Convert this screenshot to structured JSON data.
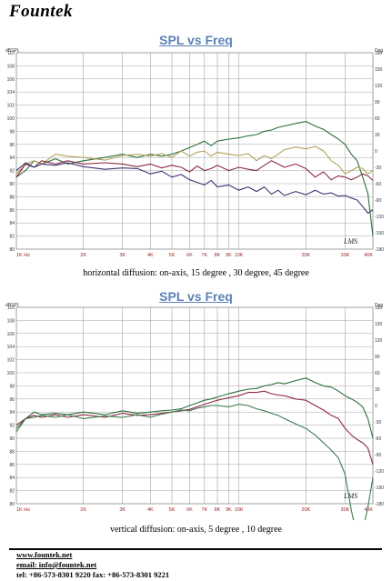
{
  "brand": "Fountek",
  "colors": {
    "grid_major": "#a3a3a3",
    "grid_minor": "#cfcfcf",
    "tick_label_red": "#9c1f1f",
    "series_on_axis": "#2f6e3b",
    "series_15": "#b0a35a",
    "series_30": "#8a2b45",
    "series_45": "#3b3472",
    "title_blue": "#5d82b5"
  },
  "chart_data": [
    {
      "type": "line",
      "title": "SPL vs Freq",
      "caption": "horizontal diffusion: on-axis, 15 degree , 30 degree, 45 degree",
      "ylabel": "dBSPL",
      "y2label": "Deg",
      "watermark": "LMS",
      "x_scale": "log",
      "xlim": [
        1000,
        40000
      ],
      "ylim": [
        80,
        110
      ],
      "y2lim": [
        -180,
        180
      ],
      "x_ticks": [
        1000,
        2000,
        3000,
        4000,
        5000,
        6000,
        7000,
        8000,
        9000,
        10000,
        20000,
        30000,
        40000
      ],
      "x_tick_labels": [
        "1K Hz",
        "2K",
        "3K",
        "4K",
        "5K",
        "6K",
        "7K",
        "8K",
        "9K",
        "10K",
        "20K",
        "30K",
        "40K"
      ],
      "y_ticks": [
        110,
        108,
        106,
        104,
        102,
        100,
        98,
        96,
        94,
        92,
        90,
        88,
        86,
        84,
        82,
        80
      ],
      "y2_ticks": [
        180,
        150,
        120,
        90,
        60,
        30,
        0,
        -30,
        -60,
        -90,
        -120,
        -150,
        -180
      ],
      "grid": true,
      "series": [
        {
          "color": "#2f6e3b",
          "x": [
            1000,
            1100,
            1200,
            1300,
            1500,
            1700,
            2000,
            2500,
            3000,
            3500,
            4000,
            4500,
            5000,
            5500,
            6000,
            6500,
            7000,
            7500,
            8000,
            9000,
            10000,
            11000,
            12000,
            13000,
            14000,
            15000,
            16000,
            18000,
            20000,
            22000,
            24000,
            26000,
            28000,
            30000,
            32000,
            34000,
            36000,
            38000,
            40000
          ],
          "y": [
            91,
            92,
            93.5,
            93,
            93.8,
            93,
            93.5,
            94,
            94.5,
            94,
            94.5,
            94.2,
            94.5,
            95,
            95.5,
            96,
            96.5,
            95.8,
            96.5,
            96.8,
            97,
            97.3,
            97.5,
            98,
            98.2,
            98.6,
            98.8,
            99.2,
            99.5,
            98.8,
            98.3,
            97.5,
            96.8,
            96,
            94.5,
            93.5,
            91,
            88.5,
            82
          ]
        },
        {
          "color": "#b0a35a",
          "x": [
            1000,
            1100,
            1200,
            1300,
            1500,
            1700,
            2000,
            2500,
            3000,
            3500,
            4000,
            4500,
            5000,
            5500,
            6000,
            6500,
            7000,
            7500,
            8000,
            9000,
            10000,
            11000,
            12000,
            13000,
            14000,
            15000,
            16000,
            18000,
            20000,
            22000,
            24000,
            26000,
            28000,
            30000,
            32000,
            34000,
            36000,
            38000,
            40000
          ],
          "y": [
            91.5,
            93,
            93.5,
            93,
            94.5,
            94.2,
            94,
            93.6,
            94.3,
            94.5,
            94.2,
            94.6,
            94,
            95,
            94.2,
            94.8,
            95,
            94.2,
            94.8,
            94.5,
            94.3,
            94.6,
            93.5,
            94.3,
            93.8,
            94.5,
            95.2,
            95.6,
            95.3,
            95.7,
            95,
            93.5,
            92.8,
            91.5,
            92,
            92.5,
            92.3,
            91.5,
            92
          ]
        },
        {
          "color": "#8a2b45",
          "x": [
            1000,
            1100,
            1200,
            1300,
            1500,
            1700,
            2000,
            2500,
            3000,
            3500,
            4000,
            4500,
            5000,
            5500,
            6000,
            6500,
            7000,
            7500,
            8000,
            9000,
            10000,
            11000,
            12000,
            13000,
            14000,
            15000,
            16000,
            18000,
            20000,
            22000,
            24000,
            26000,
            28000,
            30000,
            32000,
            34000,
            36000,
            38000,
            40000
          ],
          "y": [
            91,
            93,
            92.5,
            93.5,
            93,
            93.5,
            93,
            93.2,
            93,
            92.6,
            93,
            92.4,
            92.8,
            92.5,
            91.8,
            92.7,
            92,
            92.3,
            92.8,
            92,
            92.5,
            92.2,
            92,
            92.8,
            93.5,
            93,
            92.5,
            93,
            92.3,
            91,
            91.8,
            90.6,
            91.2,
            91,
            90.6,
            91,
            91.5,
            91.2,
            90.5
          ]
        },
        {
          "color": "#3b3472",
          "x": [
            1000,
            1100,
            1200,
            1300,
            1500,
            1700,
            2000,
            2500,
            3000,
            3500,
            4000,
            4500,
            5000,
            5500,
            6000,
            6500,
            7000,
            7500,
            8000,
            9000,
            10000,
            11000,
            12000,
            13000,
            14000,
            15000,
            16000,
            18000,
            20000,
            22000,
            24000,
            26000,
            28000,
            30000,
            32000,
            34000,
            36000,
            38000,
            40000
          ],
          "y": [
            92,
            93.2,
            92.5,
            93,
            92.8,
            93.2,
            92.6,
            92.2,
            92.4,
            92.3,
            91.5,
            91.9,
            91,
            91.4,
            90.6,
            90.2,
            89.8,
            90.5,
            89.5,
            89.8,
            89,
            89.5,
            88.8,
            89.5,
            88.4,
            89,
            88.2,
            88.8,
            88.3,
            89,
            88.4,
            88.6,
            88.1,
            88.2,
            87.8,
            87.5,
            86.5,
            85.5,
            86
          ]
        }
      ]
    },
    {
      "type": "line",
      "title": "SPL vs Freq",
      "caption": "vertical diffusion: on-axis, 5 degree , 10 degree",
      "ylabel": "dBSPL",
      "y2label": "Deg",
      "watermark": "LMS",
      "x_scale": "log",
      "xlim": [
        1000,
        40000
      ],
      "ylim": [
        80,
        110
      ],
      "y2lim": [
        -180,
        180
      ],
      "x_ticks": [
        1000,
        2000,
        3000,
        4000,
        5000,
        6000,
        7000,
        8000,
        9000,
        10000,
        20000,
        30000,
        40000
      ],
      "x_tick_labels": [
        "1K Hz",
        "2K",
        "3K",
        "4K",
        "5K",
        "6K",
        "7K",
        "8K",
        "9K",
        "10K",
        "20K",
        "30K",
        "40K"
      ],
      "y_ticks": [
        110,
        108,
        106,
        104,
        102,
        100,
        98,
        96,
        94,
        92,
        90,
        88,
        86,
        84,
        82,
        80
      ],
      "y2_ticks": [
        180,
        150,
        120,
        90,
        60,
        30,
        0,
        -30,
        -60,
        -90,
        -120,
        -150,
        -180
      ],
      "grid": true,
      "series": [
        {
          "color": "#2f6e3b",
          "x": [
            1000,
            1100,
            1200,
            1300,
            1500,
            1700,
            2000,
            2500,
            3000,
            3500,
            4000,
            4500,
            5000,
            5500,
            6000,
            6500,
            7000,
            7500,
            8000,
            9000,
            10000,
            11000,
            12000,
            13000,
            14000,
            15000,
            16000,
            18000,
            20000,
            22000,
            24000,
            26000,
            28000,
            30000,
            32000,
            34000,
            36000,
            38000,
            40000
          ],
          "y": [
            91.5,
            93,
            94,
            93.6,
            93.8,
            93.6,
            94,
            93.6,
            94.2,
            93.8,
            94,
            94.2,
            94.3,
            94.5,
            95,
            95.4,
            95.8,
            96,
            96.3,
            96.8,
            97.2,
            97.5,
            97.6,
            98,
            98.2,
            98.5,
            98.3,
            98.8,
            99.2,
            98.5,
            98,
            97.8,
            97.2,
            96.5,
            96,
            95.5,
            94.8,
            93,
            90
          ]
        },
        {
          "color": "#8a2b45",
          "x": [
            1000,
            1100,
            1200,
            1300,
            1500,
            1700,
            2000,
            2500,
            3000,
            3500,
            4000,
            4500,
            5000,
            5500,
            6000,
            6500,
            7000,
            7500,
            8000,
            9000,
            10000,
            11000,
            12000,
            13000,
            14000,
            15000,
            16000,
            18000,
            20000,
            22000,
            24000,
            26000,
            28000,
            30000,
            32000,
            34000,
            36000,
            38000,
            40000
          ],
          "y": [
            92,
            93,
            93.5,
            93.2,
            93.6,
            93.2,
            93.6,
            93.2,
            93.8,
            93.5,
            93.6,
            93.8,
            94,
            94.2,
            94.4,
            94.8,
            95.2,
            95.5,
            95.8,
            96.2,
            96.5,
            97,
            97,
            97.2,
            96.8,
            96.6,
            96.5,
            96,
            95.8,
            95,
            94.3,
            93.5,
            93,
            91.5,
            90.5,
            89.8,
            89.3,
            88.5,
            86
          ]
        },
        {
          "color": "#3f7a4e",
          "x": [
            1000,
            1100,
            1200,
            1300,
            1500,
            1700,
            2000,
            2500,
            3000,
            3500,
            4000,
            4500,
            5000,
            5500,
            6000,
            6500,
            7000,
            7500,
            8000,
            9000,
            10000,
            11000,
            12000,
            13000,
            14000,
            15000,
            16000,
            18000,
            20000,
            22000,
            24000,
            26000,
            28000,
            30000,
            32000,
            34000,
            36000,
            38000,
            40000
          ],
          "y": [
            91,
            93,
            93.2,
            93.5,
            93.2,
            93.6,
            93,
            93.4,
            93.2,
            93.6,
            93.2,
            93.7,
            94,
            94.3,
            94.2,
            94.6,
            94.8,
            95,
            95,
            94.8,
            95.2,
            95,
            94.5,
            94.2,
            93.8,
            93.5,
            93,
            92.2,
            91.5,
            90.5,
            89.3,
            88.2,
            87,
            84.5,
            79,
            75,
            75.8,
            79.5,
            84
          ]
        }
      ]
    }
  ],
  "footer": {
    "web": "www.fountek.net",
    "email": "email: info@fountek.net",
    "tel": "tel: +86-573-8301 9220 fax: +86-573-8301 9221"
  }
}
